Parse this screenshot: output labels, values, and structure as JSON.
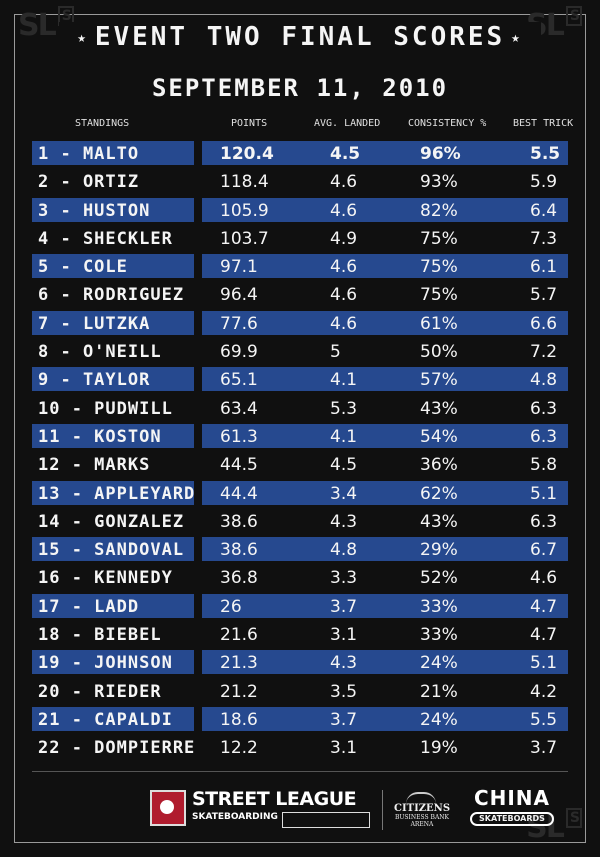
{
  "title": "EVENT TWO FINAL SCORES",
  "date": "SEPTEMBER 11, 2010",
  "corner_logo": {
    "main": "SL",
    "mark": "S"
  },
  "columns": {
    "standings": "STANDINGS",
    "points": "POINTS",
    "avg_landed": "AVG. LANDED",
    "consistency": "CONSISTENCY %",
    "best_trick": "BEST TRICK"
  },
  "rows": [
    {
      "name": "1 - MALTO",
      "points": "120.4",
      "avg": "4.5",
      "consistency": "96%",
      "best": "5.5"
    },
    {
      "name": "2 - ORTIZ",
      "points": "118.4",
      "avg": "4.6",
      "consistency": "93%",
      "best": "5.9"
    },
    {
      "name": "3 - HUSTON",
      "points": "105.9",
      "avg": "4.6",
      "consistency": "82%",
      "best": "6.4"
    },
    {
      "name": "4 - SHECKLER",
      "points": "103.7",
      "avg": "4.9",
      "consistency": "75%",
      "best": "7.3"
    },
    {
      "name": "5 - COLE",
      "points": "97.1",
      "avg": "4.6",
      "consistency": "75%",
      "best": "6.1"
    },
    {
      "name": "6 - RODRIGUEZ",
      "points": "96.4",
      "avg": "4.6",
      "consistency": "75%",
      "best": "5.7"
    },
    {
      "name": "7 - LUTZKA",
      "points": "77.6",
      "avg": "4.6",
      "consistency": "61%",
      "best": "6.6"
    },
    {
      "name": "8 - O'NEILL",
      "points": "69.9",
      "avg": "5",
      "consistency": "50%",
      "best": "7.2"
    },
    {
      "name": "9 - TAYLOR",
      "points": "65.1",
      "avg": "4.1",
      "consistency": "57%",
      "best": "4.8"
    },
    {
      "name": "10 - PUDWILL",
      "points": "63.4",
      "avg": "5.3",
      "consistency": "43%",
      "best": "6.3"
    },
    {
      "name": "11 - KOSTON",
      "points": "61.3",
      "avg": "4.1",
      "consistency": "54%",
      "best": "6.3"
    },
    {
      "name": "12 - MARKS",
      "points": "44.5",
      "avg": "4.5",
      "consistency": "36%",
      "best": "5.8"
    },
    {
      "name": "13 - APPLEYARD",
      "points": "44.4",
      "avg": "3.4",
      "consistency": "62%",
      "best": "5.1"
    },
    {
      "name": "14 - GONZALEZ",
      "points": "38.6",
      "avg": "4.3",
      "consistency": "43%",
      "best": "6.3"
    },
    {
      "name": "15 - SANDOVAL",
      "points": "38.6",
      "avg": "4.8",
      "consistency": "29%",
      "best": "6.7"
    },
    {
      "name": "16 - KENNEDY",
      "points": "36.8",
      "avg": "3.3",
      "consistency": "52%",
      "best": "4.6"
    },
    {
      "name": "17 - LADD",
      "points": "26",
      "avg": "3.7",
      "consistency": "33%",
      "best": "4.7"
    },
    {
      "name": "18 - BIEBEL",
      "points": "21.6",
      "avg": "3.1",
      "consistency": "33%",
      "best": "4.7"
    },
    {
      "name": "19 - JOHNSON",
      "points": "21.3",
      "avg": "4.3",
      "consistency": "24%",
      "best": "5.1"
    },
    {
      "name": "20 - RIEDER",
      "points": "21.2",
      "avg": "3.5",
      "consistency": "21%",
      "best": "4.2"
    },
    {
      "name": "21 - CAPALDI",
      "points": "18.6",
      "avg": "3.7",
      "consistency": "24%",
      "best": "5.5"
    },
    {
      "name": "22 - DOMPIERRE",
      "points": "12.2",
      "avg": "3.1",
      "consistency": "19%",
      "best": "3.7"
    }
  ],
  "footer": {
    "street_league": "STREET LEAGUE",
    "skateboarding": "SKATEBOARDING",
    "citizens": "CITIZENS",
    "citizens_sub": "BUSINESS BANK ARENA",
    "china": "CHINA",
    "china_sub": "SKATEBOARDS"
  },
  "colors": {
    "stripe": "#26498f",
    "background": "#101010"
  }
}
